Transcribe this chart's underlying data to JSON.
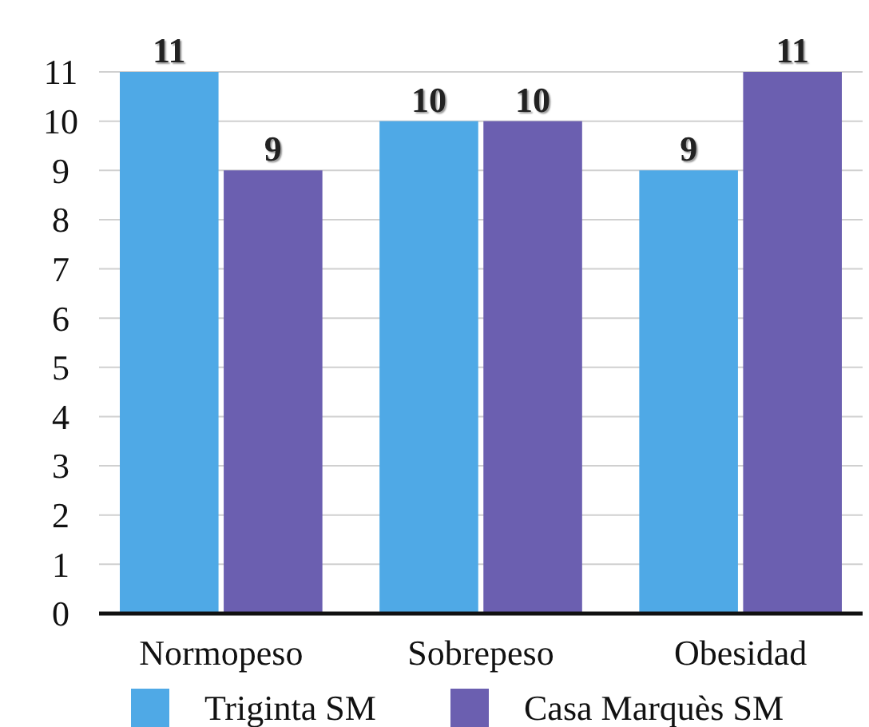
{
  "chart_data": {
    "type": "bar",
    "categories": [
      "Normopeso",
      "Sobrepeso",
      "Obesidad"
    ],
    "series": [
      {
        "name": "Triginta SM",
        "color": "#4fa9e6",
        "values": [
          11,
          10,
          9
        ]
      },
      {
        "name": "Casa Marquès SM",
        "color": "#6b5fb0",
        "values": [
          9,
          10,
          11
        ]
      }
    ],
    "ylim": [
      0,
      11
    ],
    "yticks": [
      0,
      1,
      2,
      3,
      4,
      5,
      6,
      7,
      8,
      9,
      10,
      11
    ],
    "grid": "y",
    "legend": "bottom",
    "data_labels": true
  }
}
